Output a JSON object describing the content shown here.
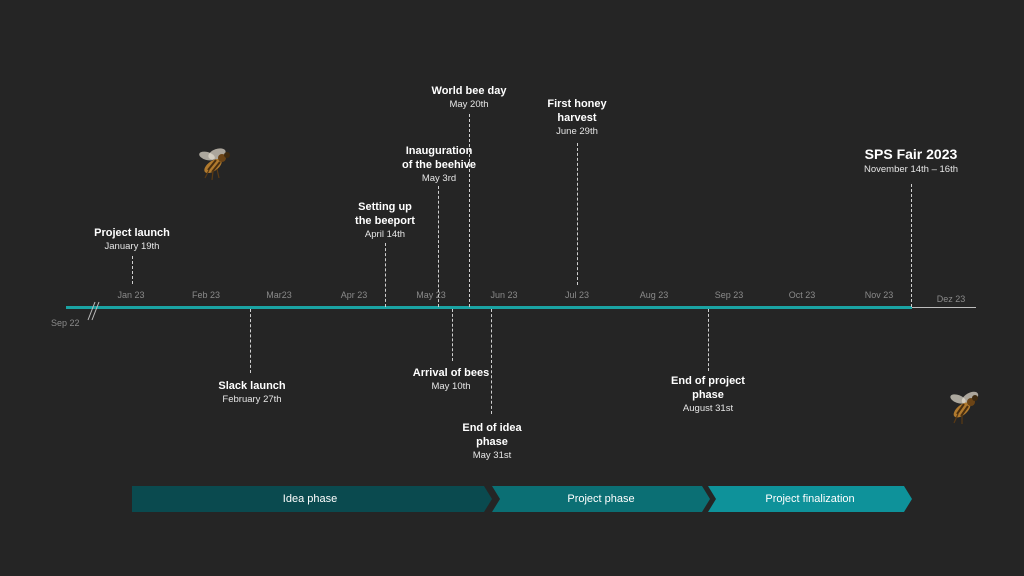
{
  "axis": {
    "start_label": "Sep 22",
    "months": [
      "Jan 23",
      "Feb 23",
      "Mar23",
      "Apr 23",
      "May 23",
      "Jun 23",
      "Jul 23",
      "Aug 23",
      "Sep 23",
      "Oct 23",
      "Nov 23",
      "Dez 23"
    ]
  },
  "events_above": [
    {
      "title": "Project launch",
      "date": "January  19th"
    },
    {
      "title": "Setting up the beeport",
      "date": "April 14th"
    },
    {
      "title": "Inauguration of the beehive",
      "date": "May 3rd"
    },
    {
      "title": "World bee day",
      "date": "May 20th"
    },
    {
      "title": "First honey harvest",
      "date": "June 29th"
    },
    {
      "title": "SPS Fair 2023",
      "date": "November  14th – 16th"
    }
  ],
  "events_below": [
    {
      "title": "Slack launch",
      "date": "February  27th"
    },
    {
      "title": "Arrival of bees",
      "date": "May 10th"
    },
    {
      "title": "End of idea phase",
      "date": "May 31st"
    },
    {
      "title": "End of project phase",
      "date": "August 31st"
    }
  ],
  "phases": [
    {
      "label": "Idea phase",
      "color": "#0a4a4f"
    },
    {
      "label": "Project phase",
      "color": "#0b6f74"
    },
    {
      "label": "Project finalization",
      "color": "#0e929a"
    }
  ],
  "colors": {
    "timeline_accent": "#1aa3a3",
    "background": "#252525"
  },
  "icons": [
    "bee-icon",
    "bee-icon"
  ]
}
